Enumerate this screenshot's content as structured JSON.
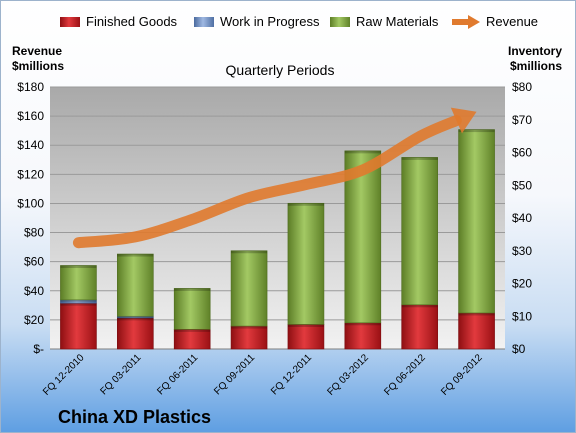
{
  "chart_data": {
    "type": "bar",
    "title": "Quarterly Periods",
    "company": "China XD Plastics",
    "y_left_label": [
      "Revenue",
      "$millions"
    ],
    "y_right_label": [
      "Inventory",
      "$millions"
    ],
    "y_left_ticks": [
      "$-",
      "$20",
      "$40",
      "$60",
      "$80",
      "$100",
      "$120",
      "$140",
      "$160",
      "$180"
    ],
    "y_right_ticks": [
      "$0",
      "$10",
      "$20",
      "$30",
      "$40",
      "$50",
      "$60",
      "$70",
      "$80"
    ],
    "y_left_range": [
      0,
      180
    ],
    "y_right_range": [
      0,
      80
    ],
    "stacked": true,
    "categories": [
      "FQ 12-2010",
      "FQ 03-2011",
      "FQ 06-2011",
      "FQ 09-2011",
      "FQ 12-2011",
      "FQ 03-2012",
      "FQ 06-2012",
      "FQ 09-2012"
    ],
    "series": [
      {
        "name": "Finished Goods",
        "axis": "right",
        "color": "#C0161B",
        "values": [
          14,
          9.5,
          6,
          7,
          7.5,
          8,
          13.5,
          11
        ]
      },
      {
        "name": "Work in Progress",
        "axis": "right",
        "color": "#6F8FC6",
        "values": [
          1,
          0.5,
          0,
          0,
          0,
          0,
          0,
          0
        ]
      },
      {
        "name": "Raw Materials",
        "axis": "right",
        "color": "#7FA83C",
        "values": [
          10.5,
          19,
          12.5,
          23,
          37,
          52.5,
          45,
          56
        ]
      }
    ],
    "line_series": {
      "name": "Revenue",
      "axis": "left",
      "color": "#E07A2E",
      "values": [
        73,
        77,
        89,
        104,
        113,
        123,
        146,
        163
      ]
    },
    "legend_position": "top",
    "grid": true
  }
}
